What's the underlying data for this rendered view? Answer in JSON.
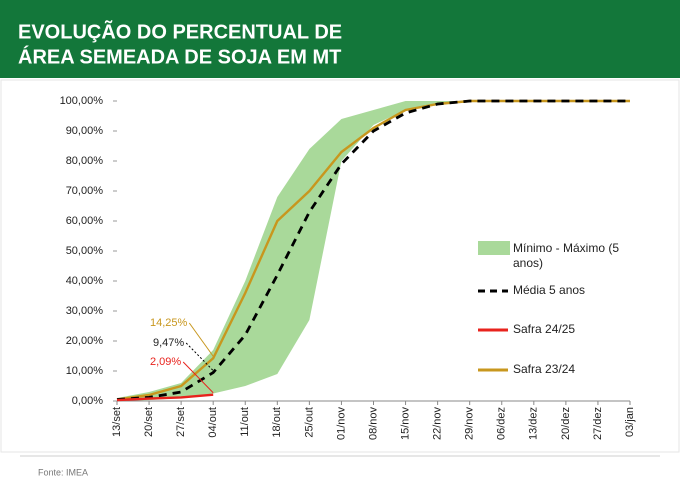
{
  "header": {
    "title_lines": [
      "EVOLUÇÃO DO PERCENTUAL DE",
      "ÁREA SEMEADA DE SOJA EM MT"
    ]
  },
  "chart_data": {
    "type": "line",
    "categories": [
      "13/set",
      "20/set",
      "27/set",
      "04/out",
      "11/out",
      "18/out",
      "25/out",
      "01/nov",
      "08/nov",
      "15/nov",
      "22/nov",
      "29/nov",
      "06/dez",
      "13/dez",
      "20/dez",
      "27/dez",
      "03/jan"
    ],
    "range": {
      "name": "Mínimo - Máximo (5 anos)",
      "color": "#a9d99a",
      "min": [
        0,
        0.3,
        1,
        2.5,
        5,
        9,
        27,
        80,
        92,
        97,
        99,
        100,
        100,
        100,
        100,
        100,
        100
      ],
      "max": [
        1,
        3,
        6,
        17,
        40,
        68,
        84,
        94,
        97,
        100,
        100,
        100,
        100,
        100,
        100,
        100,
        100
      ]
    },
    "series": [
      {
        "name": "Média 5 anos",
        "color": "#000000",
        "dashed": true,
        "values": [
          0.5,
          1.2,
          3,
          9.47,
          22,
          42,
          63,
          79,
          90,
          96,
          99,
          100,
          100,
          100,
          100,
          100,
          100
        ],
        "value_labels": [
          null,
          null,
          null,
          "9,47%",
          null,
          null,
          null,
          null,
          null,
          null,
          null,
          null,
          null,
          null,
          null,
          null,
          null
        ]
      },
      {
        "name": "Safra 24/25",
        "color": "#e8231d",
        "dashed": false,
        "values": [
          0.3,
          0.8,
          1.2,
          2.09,
          null,
          null,
          null,
          null,
          null,
          null,
          null,
          null,
          null,
          null,
          null,
          null,
          null
        ],
        "value_labels": [
          null,
          null,
          null,
          "2,09%",
          null,
          null,
          null,
          null,
          null,
          null,
          null,
          null,
          null,
          null,
          null,
          null,
          null
        ]
      },
      {
        "name": "Safra 23/24",
        "color": "#c8971e",
        "dashed": false,
        "values": [
          0.5,
          2,
          5,
          14.25,
          36,
          60,
          70,
          83,
          91,
          97,
          99,
          100,
          100,
          100,
          100,
          100,
          100
        ],
        "value_labels": [
          null,
          null,
          null,
          "14,25%",
          null,
          null,
          null,
          null,
          null,
          null,
          null,
          null,
          null,
          null,
          null,
          null,
          null
        ]
      }
    ],
    "ylim": [
      0,
      100
    ],
    "yticks": [
      {
        "value": 0,
        "label": "0,00%"
      },
      {
        "value": 10,
        "label": "10,00%"
      },
      {
        "value": 20,
        "label": "20,00%"
      },
      {
        "value": 30,
        "label": "30,00%"
      },
      {
        "value": 40,
        "label": "40,00%"
      },
      {
        "value": 50,
        "label": "50,00%"
      },
      {
        "value": 60,
        "label": "60,00%"
      },
      {
        "value": 70,
        "label": "70,00%"
      },
      {
        "value": 80,
        "label": "80,00%"
      },
      {
        "value": 90,
        "label": "90,00%"
      },
      {
        "value": 100,
        "label": "100,00%"
      }
    ],
    "source": "Fonte: IMEA"
  }
}
